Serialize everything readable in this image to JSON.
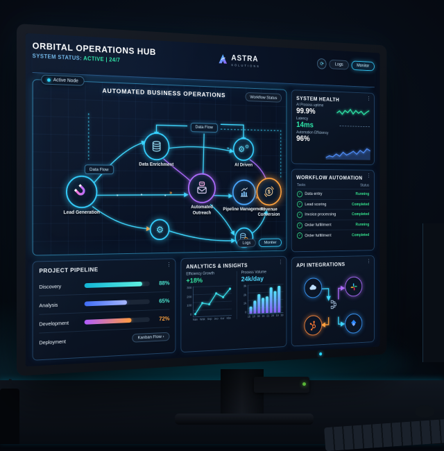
{
  "header": {
    "title": "ORBITAL OPERATIONS HUB",
    "status_label": "SYSTEM STATUS:",
    "status_value": "ACTIVE | 24/7",
    "logo_text": "ASTRA",
    "logo_sub": "SOLUTIONS",
    "logs_button": "Logs",
    "monitor_button": "Monitor"
  },
  "icons": {
    "refresh": "⟳",
    "menu_dots": "⋮",
    "check": "✓",
    "gear": "⚙"
  },
  "diagram": {
    "active_node_badge": "Active Node",
    "title": "AUTOMATED BUSINESS OPERATIONS",
    "workflow_status_button": "Workflow Status",
    "data_flow_top": "Data Flow",
    "data_flow_left": "Data Flow",
    "nodes": {
      "lead_generation": "Lead Generation",
      "data_enrichment": "Data Enrichment",
      "automated_outreach": "Automated Outreach",
      "ai_driven": "AI Driven",
      "pipeline_management": "Pipeline Management",
      "revenue_conversion": "Revenue Conversion"
    },
    "logs_button": "Logs",
    "monitor_button": "Moniter"
  },
  "system_health": {
    "title": "SYSTEM HEALTH",
    "metrics": [
      {
        "label": "AI Process uptime",
        "value": "99.9%"
      },
      {
        "label": "Latency",
        "value": "14ms"
      },
      {
        "label": "Automation Efficiency",
        "value": "96%"
      }
    ]
  },
  "workflow_automation": {
    "title": "WORKFLOW AUTOMATION",
    "col_task": "Tasks",
    "col_status": "Status",
    "rows": [
      {
        "task": "Data entry",
        "status": "Running"
      },
      {
        "task": "Lead scoring",
        "status": "Completed"
      },
      {
        "task": "Invoice processing",
        "status": "Completed"
      },
      {
        "task": "Order fulfillment",
        "status": "Running"
      },
      {
        "task": "Order fulfillment",
        "status": "Completed"
      }
    ]
  },
  "api_integrations": {
    "title": "API INTEGRATIONS",
    "services": [
      "salesforce",
      "slack",
      "hubspot",
      "jira"
    ]
  },
  "project_pipeline": {
    "title": "PROJECT PIPELINE",
    "rows": [
      {
        "label": "Discovery",
        "pct": 88,
        "pct_label": "88%"
      },
      {
        "label": "Analysis",
        "pct": 65,
        "pct_label": "65%"
      },
      {
        "label": "Development",
        "pct": 72,
        "pct_label": "72%"
      },
      {
        "label": "Deployment"
      }
    ],
    "kanban_button": "Kanban Flow ›"
  },
  "analytics": {
    "title": "ANALYTICS & INSIGHTS",
    "efficiency_label": "Efficiency Growth",
    "efficiency_value": "+18%",
    "volume_label": "Process Volume",
    "volume_value": "24k/day"
  },
  "chart_data": [
    {
      "type": "line",
      "name": "AI Process uptime sparkline",
      "values": [
        55,
        70,
        48,
        74,
        60,
        82,
        52,
        76,
        58,
        72,
        50,
        66,
        78
      ],
      "ylim": [
        0,
        100
      ],
      "color": "#2ee6a8"
    },
    {
      "type": "area",
      "name": "Automation Efficiency trend",
      "values": [
        15,
        30,
        22,
        45,
        28,
        60,
        38,
        52,
        70,
        46,
        78,
        58,
        92,
        75
      ],
      "ylim": [
        0,
        100
      ],
      "color": "#4f8df7"
    },
    {
      "type": "line",
      "title": "Efficiency Growth",
      "values": [
        8,
        185,
        162,
        338,
        272,
        408
      ],
      "x": [
        "Nan",
        "Wok",
        "Sep",
        "Jeo",
        "Kor",
        "Kbn"
      ],
      "yticks": [
        "0",
        "100",
        "200",
        "300"
      ],
      "ylim": [
        0,
        430
      ],
      "dots": true,
      "color": "#3adce8"
    },
    {
      "type": "bar",
      "title": "Process Volume",
      "values": [
        900,
        1600,
        2400,
        1900,
        2100,
        3200,
        2700,
        3400
      ],
      "categories": [
        "15",
        "18",
        "30",
        "16",
        "21",
        "28",
        "19",
        "30"
      ],
      "yticks": [
        "0",
        "1k",
        "2k",
        "3k"
      ],
      "ylim": [
        0,
        3600
      ]
    },
    {
      "type": "bar",
      "title": "Project Pipeline completion",
      "categories": [
        "Discovery",
        "Analysis",
        "Development"
      ],
      "values": [
        88,
        65,
        72
      ],
      "ylim": [
        0,
        100
      ]
    }
  ],
  "colors": {
    "accent": "#3fd8ff",
    "success": "#2ee6a8",
    "warning": "#ffa23e",
    "purple": "#b06dff"
  }
}
